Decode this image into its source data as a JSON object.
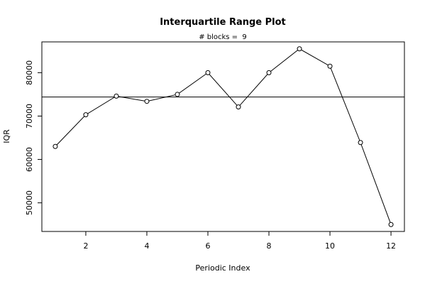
{
  "chart_data": {
    "type": "line",
    "title": "Interquartile Range Plot",
    "subtitle": "# blocks =  9",
    "xlabel": "Periodic Index",
    "ylabel": "IQR",
    "x": [
      1,
      2,
      3,
      4,
      5,
      6,
      7,
      8,
      9,
      10,
      11,
      12
    ],
    "series": [
      {
        "values": [
          63000,
          70300,
          74600,
          73400,
          75000,
          80000,
          72100,
          80000,
          85500,
          81500,
          63900,
          45000
        ]
      }
    ],
    "reference_line": 74400,
    "xlim": [
      0.56,
      12.44
    ],
    "ylim": [
      43400,
      87100
    ],
    "x_ticks": [
      2,
      4,
      6,
      8,
      10,
      12
    ],
    "y_ticks": [
      50000,
      60000,
      70000,
      80000
    ],
    "grid": false,
    "markers": "open-circle"
  }
}
